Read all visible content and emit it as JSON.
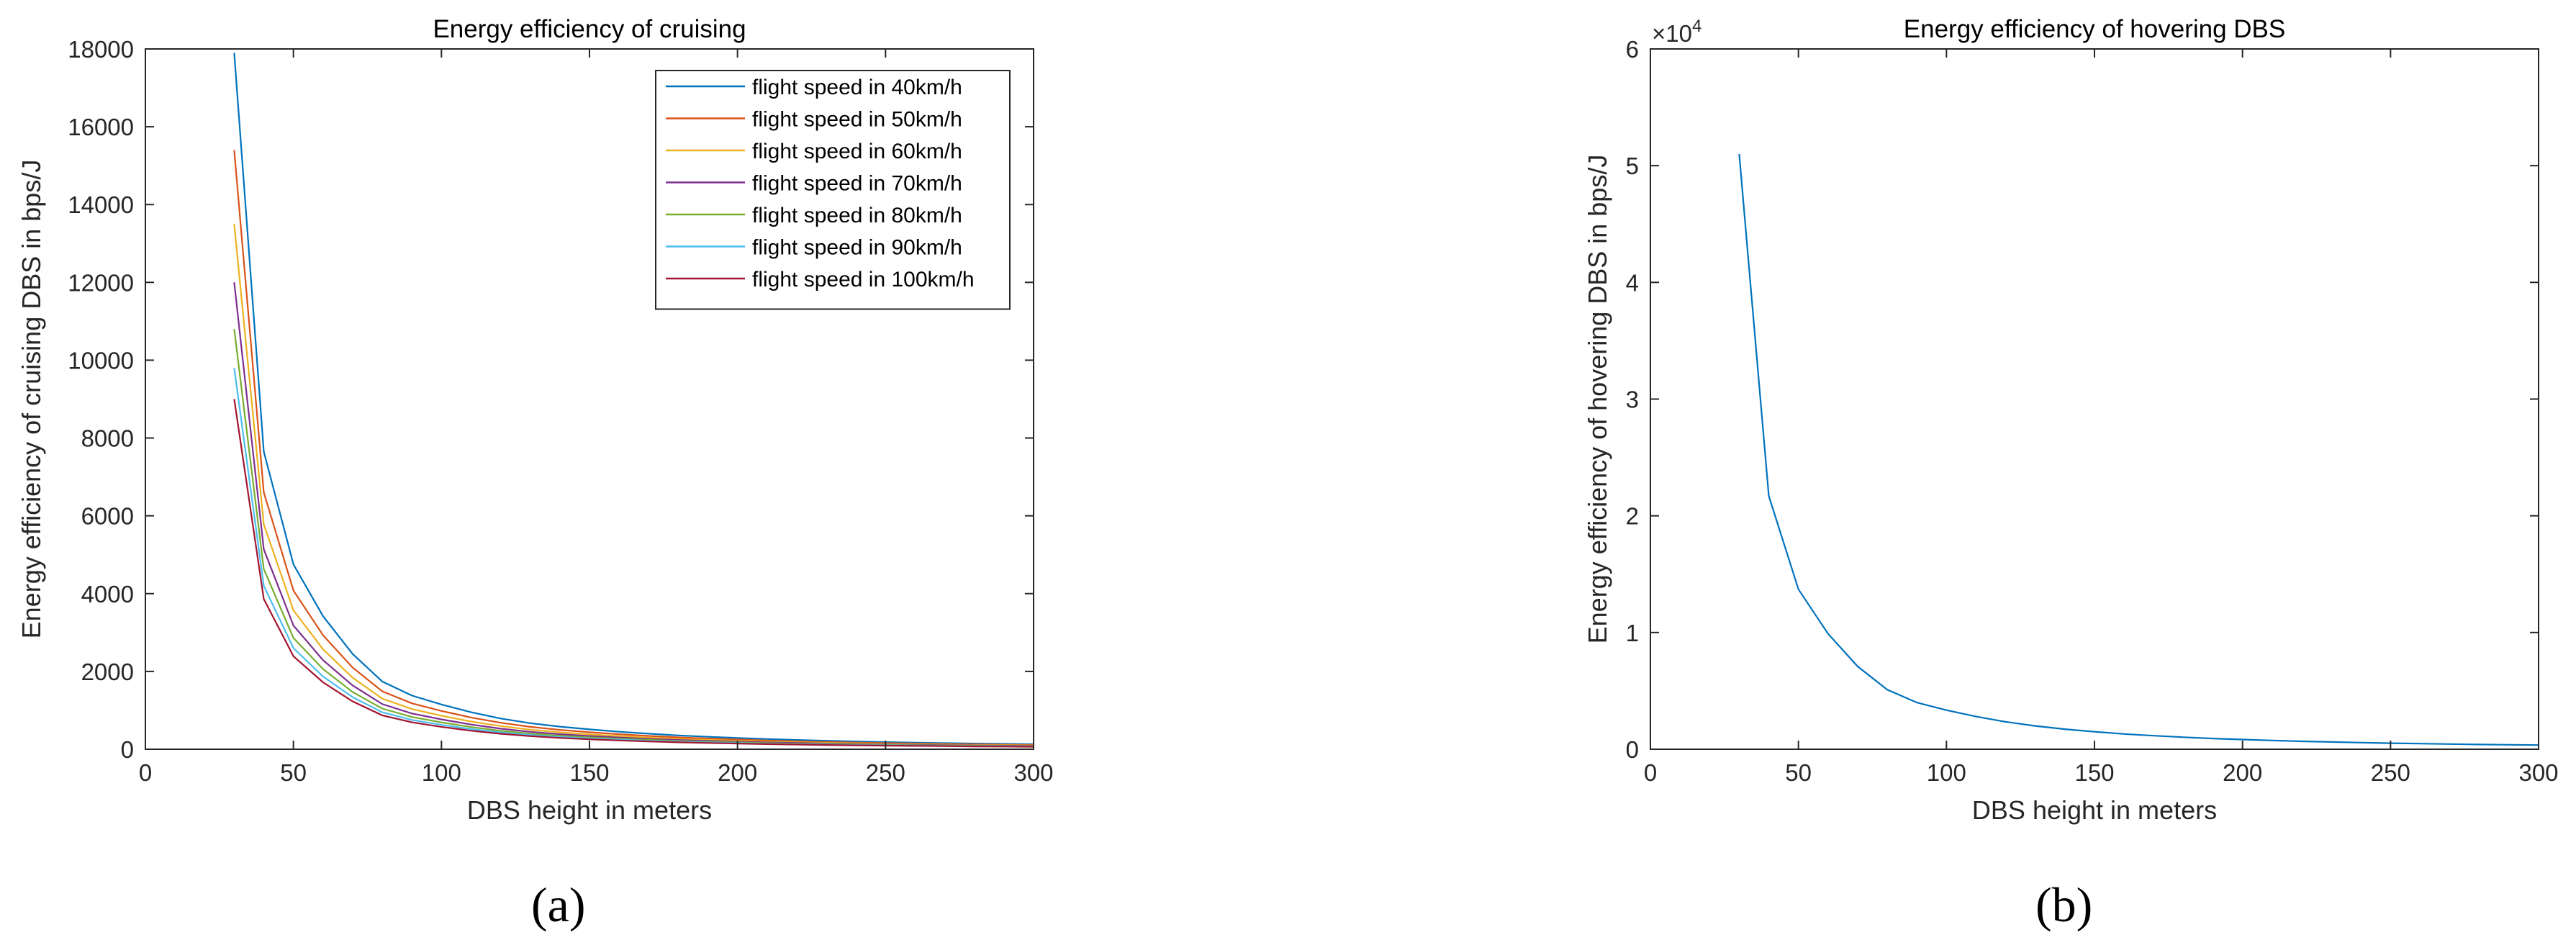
{
  "chart_data": [
    {
      "type": "line",
      "title": "Energy efficiency of cruising",
      "xlabel": "DBS height in meters",
      "ylabel": "Energy efficiency of cruising DBS in bps/J",
      "xlim": [
        0,
        300
      ],
      "ylim": [
        0,
        18000
      ],
      "xticks": [
        0,
        50,
        100,
        150,
        200,
        250,
        300
      ],
      "yticks": [
        0,
        2000,
        4000,
        6000,
        8000,
        10000,
        12000,
        14000,
        16000,
        18000
      ],
      "grid": false,
      "legend_position": "top-right",
      "panel_label": "(a)",
      "x": [
        30,
        40,
        50,
        60,
        70,
        80,
        90,
        100,
        110,
        120,
        130,
        140,
        150,
        160,
        170,
        180,
        190,
        200,
        210,
        220,
        230,
        240,
        250,
        260,
        270,
        280,
        290,
        300
      ],
      "series": [
        {
          "name": "flight speed in 40km/h",
          "color": "#0072BD",
          "values": [
            17900,
            7650,
            4750,
            3420,
            2450,
            1740,
            1380,
            1150,
            950,
            790,
            670,
            580,
            510,
            450,
            400,
            355,
            320,
            290,
            262,
            238,
            218,
            200,
            184,
            170,
            157,
            146,
            136,
            127
          ]
        },
        {
          "name": "flight speed in 50km/h",
          "color": "#D95319",
          "values": [
            15400,
            6600,
            4080,
            2930,
            2100,
            1490,
            1180,
            985,
            815,
            680,
            575,
            497,
            437,
            386,
            343,
            305,
            275,
            249,
            225,
            204,
            187,
            171,
            158,
            146,
            135,
            125,
            117,
            109
          ]
        },
        {
          "name": "flight speed in 60km/h",
          "color": "#EDB120",
          "values": [
            13500,
            5780,
            3570,
            2570,
            1840,
            1300,
            1035,
            862,
            712,
            595,
            503,
            435,
            383,
            338,
            300,
            267,
            241,
            218,
            197,
            179,
            164,
            150,
            138,
            128,
            118,
            110,
            102,
            95
          ]
        },
        {
          "name": "flight speed in 70km/h",
          "color": "#7E2F8E",
          "values": [
            12000,
            5140,
            3180,
            2290,
            1640,
            1160,
            920,
            767,
            634,
            529,
            447,
            387,
            340,
            301,
            267,
            237,
            214,
            194,
            175,
            159,
            146,
            133,
            123,
            114,
            105,
            98,
            91,
            85
          ]
        },
        {
          "name": "flight speed in 80km/h",
          "color": "#77AC30",
          "values": [
            10800,
            4630,
            2860,
            2060,
            1470,
            1045,
            828,
            690,
            570,
            476,
            402,
            348,
            306,
            271,
            240,
            213,
            193,
            175,
            158,
            143,
            131,
            120,
            111,
            102,
            95,
            88,
            82,
            76
          ]
        },
        {
          "name": "flight speed in 90km/h",
          "color": "#4DBEEE",
          "values": [
            9800,
            4200,
            2600,
            1870,
            1340,
            950,
            753,
            627,
            518,
            433,
            366,
            317,
            278,
            246,
            218,
            194,
            175,
            159,
            143,
            130,
            119,
            109,
            101,
            93,
            86,
            80,
            74,
            69
          ]
        },
        {
          "name": "flight speed in 100km/h",
          "color": "#A2142F",
          "values": [
            9000,
            3860,
            2390,
            1720,
            1230,
            872,
            692,
            576,
            476,
            397,
            336,
            291,
            256,
            226,
            200,
            178,
            161,
            146,
            132,
            120,
            110,
            100,
            92,
            85,
            79,
            73,
            68,
            63
          ]
        }
      ]
    },
    {
      "type": "line",
      "title": "Energy efficiency of hovering DBS",
      "xlabel": "DBS height in meters",
      "ylabel": "Energy efficiency of hovering DBS in bps/J",
      "xlim": [
        0,
        300
      ],
      "ylim": [
        0,
        60000
      ],
      "xticks": [
        0,
        50,
        100,
        150,
        200,
        250,
        300
      ],
      "yticks": [
        0,
        10000,
        20000,
        30000,
        40000,
        50000,
        60000
      ],
      "ytick_labels": [
        "0",
        "1",
        "2",
        "3",
        "4",
        "5",
        "6"
      ],
      "exponent_base": "×10",
      "exponent_power": "4",
      "grid": false,
      "panel_label": "(b)",
      "x": [
        30,
        40,
        50,
        60,
        70,
        80,
        90,
        100,
        110,
        120,
        130,
        140,
        150,
        160,
        170,
        180,
        190,
        200,
        210,
        220,
        230,
        240,
        250,
        260,
        270,
        280,
        290,
        300
      ],
      "series": [
        {
          "name": "",
          "color": "#0072BD",
          "values": [
            51000,
            21700,
            13700,
            9900,
            7100,
            5100,
            4000,
            3350,
            2800,
            2350,
            2000,
            1720,
            1500,
            1310,
            1160,
            1030,
            920,
            830,
            750,
            680,
            620,
            570,
            520,
            480,
            445,
            410,
            380,
            355
          ]
        }
      ]
    }
  ]
}
